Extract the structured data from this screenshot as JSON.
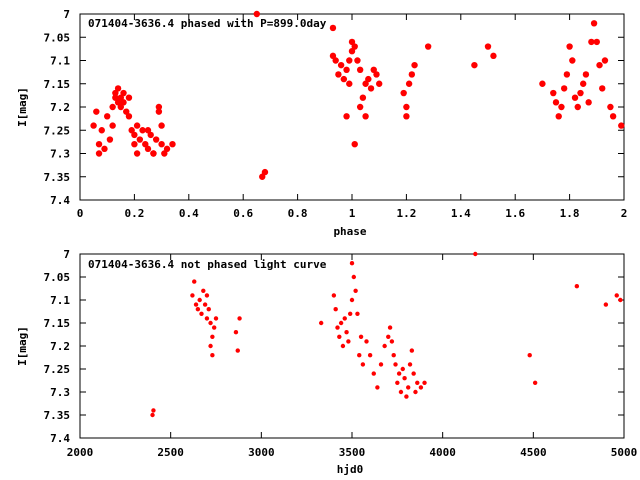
{
  "chart_data": [
    {
      "type": "scatter",
      "title": "071404-3636.4 phased with P=899.0day",
      "xlabel": "phase",
      "ylabel": "I[mag]",
      "xlim": [
        0,
        2
      ],
      "ylim": [
        7.4,
        7.0
      ],
      "y_inverted": true,
      "xticks": [
        "0",
        "0.2",
        "0.4",
        "0.6",
        "0.8",
        "1",
        "1.2",
        "1.4",
        "1.6",
        "1.8",
        "2"
      ],
      "yticks": [
        "7",
        "7.05",
        "7.1",
        "7.15",
        "7.2",
        "7.25",
        "7.3",
        "7.35",
        "7.4"
      ],
      "grid": false,
      "legend": "none",
      "marker_color": "#ff0000",
      "series": [
        {
          "points": [
            [
              0.05,
              7.24
            ],
            [
              0.06,
              7.21
            ],
            [
              0.07,
              7.28
            ],
            [
              0.07,
              7.3
            ],
            [
              0.08,
              7.25
            ],
            [
              0.09,
              7.29
            ],
            [
              0.1,
              7.22
            ],
            [
              0.11,
              7.27
            ],
            [
              0.12,
              7.24
            ],
            [
              0.12,
              7.2
            ],
            [
              0.13,
              7.18
            ],
            [
              0.13,
              7.17
            ],
            [
              0.14,
              7.19
            ],
            [
              0.14,
              7.16
            ],
            [
              0.15,
              7.18
            ],
            [
              0.15,
              7.2
            ],
            [
              0.16,
              7.17
            ],
            [
              0.16,
              7.19
            ],
            [
              0.17,
              7.21
            ],
            [
              0.18,
              7.18
            ],
            [
              0.18,
              7.22
            ],
            [
              0.19,
              7.25
            ],
            [
              0.2,
              7.26
            ],
            [
              0.2,
              7.28
            ],
            [
              0.21,
              7.24
            ],
            [
              0.21,
              7.3
            ],
            [
              0.22,
              7.27
            ],
            [
              0.23,
              7.25
            ],
            [
              0.24,
              7.28
            ],
            [
              0.25,
              7.29
            ],
            [
              0.25,
              7.25
            ],
            [
              0.26,
              7.26
            ],
            [
              0.27,
              7.3
            ],
            [
              0.27,
              7.3
            ],
            [
              0.28,
              7.27
            ],
            [
              0.29,
              7.2
            ],
            [
              0.29,
              7.21
            ],
            [
              0.3,
              7.24
            ],
            [
              0.3,
              7.28
            ],
            [
              0.31,
              7.3
            ],
            [
              0.32,
              7.29
            ],
            [
              0.34,
              7.28
            ],
            [
              0.65,
              7.0
            ],
            [
              0.67,
              7.35
            ],
            [
              0.68,
              7.34
            ],
            [
              0.93,
              7.03
            ],
            [
              0.93,
              7.09
            ],
            [
              0.94,
              7.1
            ],
            [
              0.95,
              7.13
            ],
            [
              0.96,
              7.11
            ],
            [
              0.97,
              7.14
            ],
            [
              0.98,
              7.12
            ],
            [
              0.99,
              7.15
            ],
            [
              0.99,
              7.1
            ],
            [
              1.0,
              7.06
            ],
            [
              1.0,
              7.08
            ],
            [
              1.01,
              7.07
            ],
            [
              1.02,
              7.1
            ],
            [
              1.03,
              7.12
            ],
            [
              1.03,
              7.2
            ],
            [
              1.04,
              7.18
            ],
            [
              1.05,
              7.15
            ],
            [
              1.06,
              7.14
            ],
            [
              1.07,
              7.16
            ],
            [
              1.08,
              7.12
            ],
            [
              1.09,
              7.13
            ],
            [
              1.1,
              7.15
            ],
            [
              0.98,
              7.22
            ],
            [
              1.01,
              7.28
            ],
            [
              1.05,
              7.22
            ],
            [
              1.19,
              7.17
            ],
            [
              1.2,
              7.2
            ],
            [
              1.2,
              7.22
            ],
            [
              1.21,
              7.15
            ],
            [
              1.22,
              7.13
            ],
            [
              1.23,
              7.11
            ],
            [
              1.28,
              7.07
            ],
            [
              1.45,
              7.11
            ],
            [
              1.5,
              7.07
            ],
            [
              1.52,
              7.09
            ],
            [
              1.7,
              7.15
            ],
            [
              1.74,
              7.17
            ],
            [
              1.75,
              7.19
            ],
            [
              1.76,
              7.22
            ],
            [
              1.77,
              7.2
            ],
            [
              1.78,
              7.16
            ],
            [
              1.79,
              7.13
            ],
            [
              1.8,
              7.07
            ],
            [
              1.81,
              7.1
            ],
            [
              1.82,
              7.18
            ],
            [
              1.83,
              7.2
            ],
            [
              1.84,
              7.17
            ],
            [
              1.85,
              7.15
            ],
            [
              1.86,
              7.13
            ],
            [
              1.87,
              7.19
            ],
            [
              1.88,
              7.06
            ],
            [
              1.89,
              7.02
            ],
            [
              1.9,
              7.06
            ],
            [
              1.91,
              7.11
            ],
            [
              1.92,
              7.16
            ],
            [
              1.93,
              7.1
            ],
            [
              1.95,
              7.2
            ],
            [
              1.96,
              7.22
            ],
            [
              1.99,
              7.24
            ]
          ]
        }
      ]
    },
    {
      "type": "scatter",
      "title": "071404-3636.4 not phased light curve",
      "xlabel": "hjd0",
      "ylabel": "I[mag]",
      "xlim": [
        2000,
        5000
      ],
      "ylim": [
        7.4,
        7.0
      ],
      "y_inverted": true,
      "xticks": [
        "2000",
        "2500",
        "3000",
        "3500",
        "4000",
        "4500",
        "5000"
      ],
      "yticks": [
        "7",
        "7.05",
        "7.1",
        "7.15",
        "7.2",
        "7.25",
        "7.3",
        "7.35",
        "7.4"
      ],
      "grid": false,
      "legend": "none",
      "marker_color": "#ff0000",
      "series": [
        {
          "points": [
            [
              2400,
              7.35
            ],
            [
              2405,
              7.34
            ],
            [
              2620,
              7.09
            ],
            [
              2630,
              7.06
            ],
            [
              2640,
              7.11
            ],
            [
              2650,
              7.12
            ],
            [
              2660,
              7.1
            ],
            [
              2670,
              7.13
            ],
            [
              2680,
              7.08
            ],
            [
              2690,
              7.11
            ],
            [
              2700,
              7.14
            ],
            [
              2710,
              7.12
            ],
            [
              2720,
              7.15
            ],
            [
              2730,
              7.18
            ],
            [
              2740,
              7.16
            ],
            [
              2750,
              7.14
            ],
            [
              2700,
              7.09
            ],
            [
              2720,
              7.2
            ],
            [
              2730,
              7.22
            ],
            [
              2860,
              7.17
            ],
            [
              2870,
              7.21
            ],
            [
              2880,
              7.14
            ],
            [
              3330,
              7.15
            ],
            [
              3400,
              7.09
            ],
            [
              3410,
              7.12
            ],
            [
              3420,
              7.16
            ],
            [
              3430,
              7.18
            ],
            [
              3440,
              7.15
            ],
            [
              3450,
              7.2
            ],
            [
              3460,
              7.14
            ],
            [
              3470,
              7.17
            ],
            [
              3480,
              7.19
            ],
            [
              3490,
              7.13
            ],
            [
              3500,
              7.1
            ],
            [
              3510,
              7.05
            ],
            [
              3500,
              7.02
            ],
            [
              3520,
              7.08
            ],
            [
              3530,
              7.13
            ],
            [
              3540,
              7.22
            ],
            [
              3550,
              7.18
            ],
            [
              3560,
              7.24
            ],
            [
              3580,
              7.19
            ],
            [
              3600,
              7.22
            ],
            [
              3620,
              7.26
            ],
            [
              3640,
              7.29
            ],
            [
              3660,
              7.24
            ],
            [
              3680,
              7.2
            ],
            [
              3700,
              7.18
            ],
            [
              3710,
              7.16
            ],
            [
              3720,
              7.19
            ],
            [
              3730,
              7.22
            ],
            [
              3740,
              7.24
            ],
            [
              3750,
              7.28
            ],
            [
              3760,
              7.26
            ],
            [
              3770,
              7.3
            ],
            [
              3780,
              7.25
            ],
            [
              3790,
              7.27
            ],
            [
              3800,
              7.31
            ],
            [
              3810,
              7.29
            ],
            [
              3820,
              7.24
            ],
            [
              3830,
              7.21
            ],
            [
              3840,
              7.26
            ],
            [
              3850,
              7.3
            ],
            [
              3860,
              7.28
            ],
            [
              3880,
              7.29
            ],
            [
              3900,
              7.28
            ],
            [
              4180,
              7.0
            ],
            [
              4480,
              7.22
            ],
            [
              4510,
              7.28
            ],
            [
              4740,
              7.07
            ],
            [
              4900,
              7.11
            ],
            [
              4960,
              7.09
            ],
            [
              4980,
              7.1
            ]
          ]
        }
      ]
    }
  ]
}
